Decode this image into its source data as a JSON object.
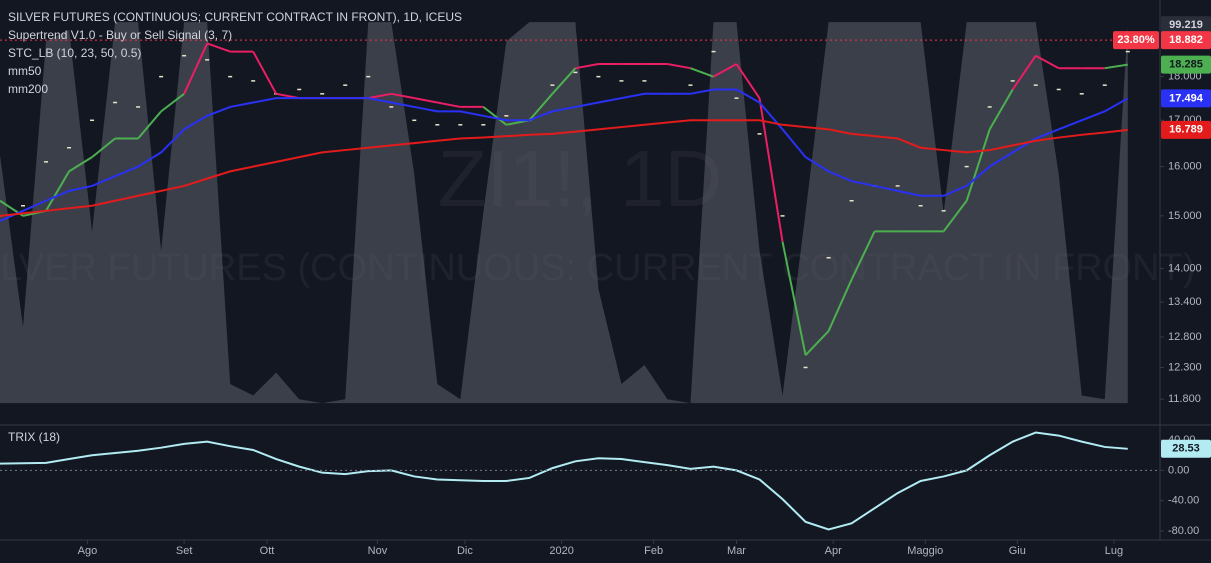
{
  "chart_data": [
    {
      "type": "financial",
      "title": "SILVER FUTURES (CONTINUOUS; CURRENT CONTRACT IN FRONT), 1D, ICEUS",
      "watermark_symbol": "ZI1!, 1D",
      "watermark_name": "SILVER FUTURES (CONTINUOUS: CURRENT CONTRACT IN FRONT)",
      "log_scale": true,
      "xlim": [
        0,
        252
      ],
      "ylim": [
        11.71,
        19.77
      ],
      "yticks": [
        {
          "value": 11.8,
          "label": "11.800"
        },
        {
          "value": 12.3,
          "label": "12.300"
        },
        {
          "value": 12.8,
          "label": "12.800"
        },
        {
          "value": 13.4,
          "label": "13.400"
        },
        {
          "value": 14,
          "label": "14.000"
        },
        {
          "value": 15,
          "label": "15.000"
        },
        {
          "value": 16,
          "label": "16.000"
        },
        {
          "value": 17,
          "label": "17.000"
        },
        {
          "value": 18,
          "label": "18.000"
        }
      ],
      "y2lim": [
        -0.5,
        104.5
      ],
      "hline": {
        "value": 18.882,
        "label": "23.80%",
        "color": "#f23645"
      },
      "x": [
        0,
        5,
        10,
        15,
        20,
        25,
        30,
        35,
        40,
        45,
        50,
        55,
        60,
        65,
        70,
        75,
        80,
        85,
        90,
        95,
        100,
        105,
        110,
        115,
        120,
        125,
        130,
        135,
        140,
        145,
        150,
        155,
        160,
        165,
        170,
        175,
        180,
        185,
        190,
        195,
        200,
        205,
        210,
        215,
        220,
        225,
        230,
        235,
        240,
        245
      ],
      "series": [
        {
          "style": "dash",
          "color": "#e8e4c9",
          "values": [
            15.0,
            15.2,
            16.1,
            16.4,
            17.0,
            17.4,
            17.3,
            18.0,
            18.5,
            18.4,
            18.0,
            17.9,
            17.6,
            17.7,
            17.6,
            17.8,
            18.0,
            17.3,
            17.0,
            16.9,
            16.9,
            16.9,
            17.1,
            17.0,
            17.8,
            18.1,
            18.0,
            17.9,
            17.9,
            17.6,
            17.8,
            18.6,
            17.5,
            16.7,
            15.0,
            12.3,
            14.2,
            15.3,
            15.6,
            15.6,
            15.2,
            15.1,
            16.0,
            17.3,
            17.9,
            17.8,
            17.7,
            17.6,
            17.8,
            18.6
          ]
        },
        {
          "name": "Supertrend V1.0 - Buy or Sell Signal (3, 7)",
          "color": "#4caf50",
          "values": [
            15.3,
            15.0,
            15.1,
            15.9,
            16.2,
            16.6,
            16.6,
            17.2,
            17.6,
            18.8,
            18.6,
            18.6,
            17.6,
            17.5,
            17.5,
            17.5,
            17.5,
            17.6,
            17.5,
            17.4,
            17.3,
            17.3,
            16.9,
            17.0,
            17.6,
            18.2,
            18.3,
            18.3,
            18.3,
            18.3,
            18.2,
            18.0,
            18.3,
            17.5,
            14.5,
            12.5,
            12.9,
            13.8,
            14.7,
            14.7,
            14.7,
            14.7,
            15.3,
            16.8,
            17.7,
            18.5,
            18.2,
            18.2,
            18.2,
            18.285
          ],
          "colors": [
            "#e91e63",
            "#4caf50",
            "#4caf50",
            "#4caf50",
            "#4caf50",
            "#4caf50",
            "#4caf50",
            "#4caf50",
            "#4caf50",
            "#e91e63",
            "#e91e63",
            "#e91e63",
            "#e91e63",
            "#e91e63",
            "#e91e63",
            "#e91e63",
            "#e91e63",
            "#e91e63",
            "#e91e63",
            "#e91e63",
            "#e91e63",
            "#e91e63",
            "#4caf50",
            "#4caf50",
            "#4caf50",
            "#4caf50",
            "#e91e63",
            "#e91e63",
            "#e91e63",
            "#e91e63",
            "#e91e63",
            "#4caf50",
            "#e91e63",
            "#e91e63",
            "#e91e63",
            "#4caf50",
            "#4caf50",
            "#4caf50",
            "#4caf50",
            "#4caf50",
            "#4caf50",
            "#4caf50",
            "#4caf50",
            "#4caf50",
            "#4caf50",
            "#e91e63",
            "#e91e63",
            "#e91e63",
            "#e91e63",
            "#4caf50"
          ]
        },
        {
          "name": "STC_LB (10, 23, 50, 0.5)",
          "axis": "y2",
          "color": "#5d606b",
          "values": [
            65,
            20,
            95,
            98,
            45,
            100,
            100,
            40,
            100,
            100,
            5,
            2,
            8,
            1,
            0,
            1,
            100,
            100,
            60,
            5,
            1,
            50,
            95,
            100,
            100,
            100,
            30,
            5,
            10,
            1,
            0,
            100,
            100,
            40,
            2,
            50,
            100,
            100,
            100,
            100,
            100,
            50,
            100,
            100,
            100,
            100,
            60,
            2,
            1,
            99.219
          ]
        },
        {
          "name": "mm50",
          "color": "#2931f5",
          "values": [
            14.9,
            15.1,
            15.3,
            15.5,
            15.6,
            15.8,
            16.0,
            16.3,
            16.8,
            17.1,
            17.3,
            17.4,
            17.5,
            17.5,
            17.5,
            17.5,
            17.5,
            17.4,
            17.3,
            17.2,
            17.2,
            17.1,
            17.0,
            17.0,
            17.2,
            17.3,
            17.4,
            17.5,
            17.6,
            17.6,
            17.6,
            17.7,
            17.7,
            17.4,
            16.8,
            16.2,
            15.9,
            15.7,
            15.6,
            15.5,
            15.4,
            15.4,
            15.6,
            16.0,
            16.3,
            16.6,
            16.8,
            17.0,
            17.2,
            17.494
          ]
        },
        {
          "name": "mm200",
          "color": "#e31b1b",
          "values": [
            15.0,
            15.05,
            15.1,
            15.15,
            15.2,
            15.3,
            15.4,
            15.5,
            15.6,
            15.75,
            15.9,
            16.0,
            16.1,
            16.2,
            16.3,
            16.35,
            16.4,
            16.45,
            16.5,
            16.55,
            16.6,
            16.62,
            16.65,
            16.68,
            16.7,
            16.75,
            16.8,
            16.85,
            16.9,
            16.95,
            17.0,
            17.0,
            17.0,
            17.0,
            16.9,
            16.85,
            16.8,
            16.7,
            16.65,
            16.6,
            16.4,
            16.35,
            16.3,
            16.35,
            16.45,
            16.55,
            16.62,
            16.68,
            16.73,
            16.789
          ]
        }
      ]
    },
    {
      "type": "line",
      "xlim": [
        0,
        252
      ],
      "ylim": [
        -92,
        60
      ],
      "yticks": [
        {
          "value": 40,
          "label": "40.00"
        },
        {
          "value": 0,
          "label": "0.00"
        },
        {
          "value": -40,
          "label": "-40.00"
        },
        {
          "value": -80,
          "label": "-80.00"
        }
      ],
      "hline": {
        "value": 0
      },
      "xticks": [
        {
          "value": 19,
          "label": "Ago"
        },
        {
          "value": 40,
          "label": "Set"
        },
        {
          "value": 58,
          "label": "Ott"
        },
        {
          "value": 82,
          "label": "Nov"
        },
        {
          "value": 101,
          "label": "Dic"
        },
        {
          "value": 122,
          "label": "2020"
        },
        {
          "value": 142,
          "label": "Feb"
        },
        {
          "value": 160,
          "label": "Mar"
        },
        {
          "value": 181,
          "label": "Apr"
        },
        {
          "value": 201,
          "label": "Maggio"
        },
        {
          "value": 221,
          "label": "Giu"
        },
        {
          "value": 242,
          "label": "Lug"
        }
      ],
      "x": [
        0,
        5,
        10,
        15,
        20,
        25,
        30,
        35,
        40,
        45,
        50,
        55,
        60,
        65,
        70,
        75,
        80,
        85,
        90,
        95,
        100,
        105,
        110,
        115,
        120,
        125,
        130,
        135,
        140,
        145,
        150,
        155,
        160,
        165,
        170,
        175,
        180,
        185,
        190,
        195,
        200,
        205,
        210,
        215,
        220,
        225,
        230,
        235,
        240,
        245
      ],
      "series": [
        {
          "name": "TRIX (18)",
          "color": "#b2ebf2",
          "values": [
            9,
            9.5,
            10,
            15,
            20,
            23,
            26,
            30,
            35,
            38,
            32,
            27,
            15,
            5,
            -3,
            -5,
            -1,
            0,
            -8,
            -12,
            -13,
            -14,
            -14,
            -10,
            3,
            12,
            16,
            15,
            11,
            7,
            2,
            5,
            0,
            -12,
            -38,
            -68,
            -78,
            -70,
            -50,
            -30,
            -14,
            -8,
            0,
            20,
            38,
            50,
            46,
            38,
            31,
            28.53
          ]
        }
      ]
    }
  ]
}
